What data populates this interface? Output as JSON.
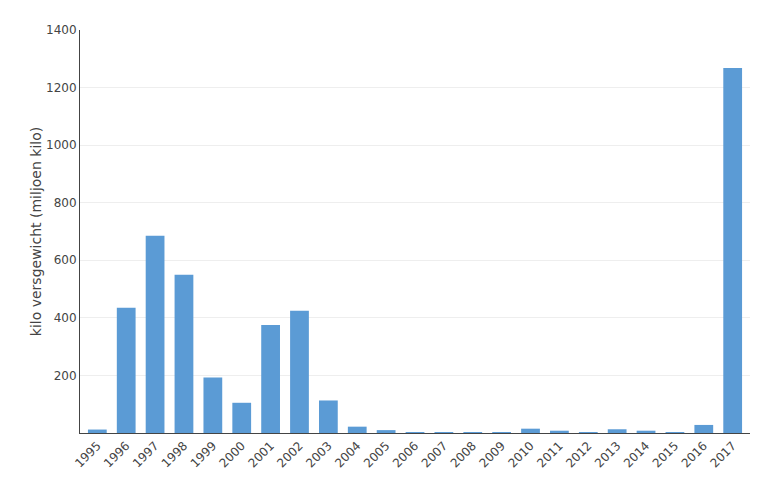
{
  "chart_data": {
    "type": "bar",
    "categories": [
      "1995",
      "1996",
      "1997",
      "1998",
      "1999",
      "2000",
      "2001",
      "2002",
      "2003",
      "2004",
      "2005",
      "2006",
      "2007",
      "2008",
      "2009",
      "2010",
      "2011",
      "2012",
      "2013",
      "2014",
      "2015",
      "2016",
      "2017"
    ],
    "values": [
      12,
      435,
      685,
      550,
      193,
      105,
      375,
      425,
      113,
      22,
      10,
      3,
      3,
      3,
      3,
      15,
      8,
      3,
      13,
      8,
      3,
      28,
      1268
    ],
    "color": "#5b9bd5",
    "ylabel": "kilo versgewicht (miljoen kilo)",
    "ylim": [
      0,
      1400
    ],
    "yticks": [
      200,
      400,
      600,
      800,
      1000,
      1200,
      1400
    ],
    "grid": true
  }
}
